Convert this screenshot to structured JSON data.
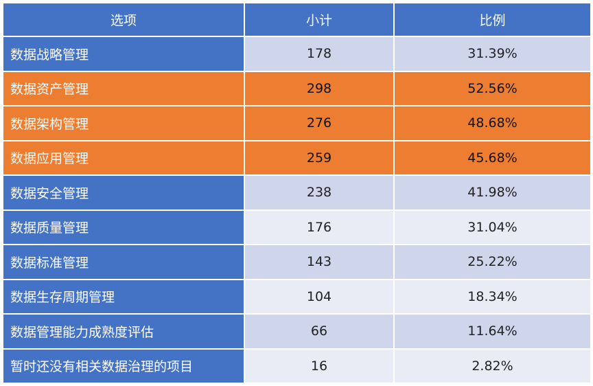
{
  "chart_data": {
    "type": "table",
    "columns": [
      "选项",
      "小计",
      "比例"
    ],
    "rows": [
      {
        "option": "数据战略管理",
        "count": "178",
        "ratio": "31.39%",
        "highlight": false
      },
      {
        "option": "数据资产管理",
        "count": "298",
        "ratio": "52.56%",
        "highlight": true
      },
      {
        "option": "数据架构管理",
        "count": "276",
        "ratio": "48.68%",
        "highlight": true
      },
      {
        "option": "数据应用管理",
        "count": "259",
        "ratio": "45.68%",
        "highlight": true
      },
      {
        "option": "数据安全管理",
        "count": "238",
        "ratio": "41.98%",
        "highlight": false
      },
      {
        "option": "数据质量管理",
        "count": "176",
        "ratio": "31.04%",
        "highlight": false
      },
      {
        "option": "数据标准管理",
        "count": "143",
        "ratio": "25.22%",
        "highlight": false
      },
      {
        "option": "数据生存周期管理",
        "count": "104",
        "ratio": "18.34%",
        "highlight": false
      },
      {
        "option": "数据管理能力成熟度评估",
        "count": "66",
        "ratio": "11.64%",
        "highlight": false
      },
      {
        "option": "暂时还没有相关数据治理的项目",
        "count": "16",
        "ratio": "2.82%",
        "highlight": false
      }
    ],
    "colors": {
      "header": "#4472C4",
      "highlight": "#ED7D31",
      "band_dark": "#CFD5EA",
      "band_light": "#E9EBF5"
    }
  }
}
